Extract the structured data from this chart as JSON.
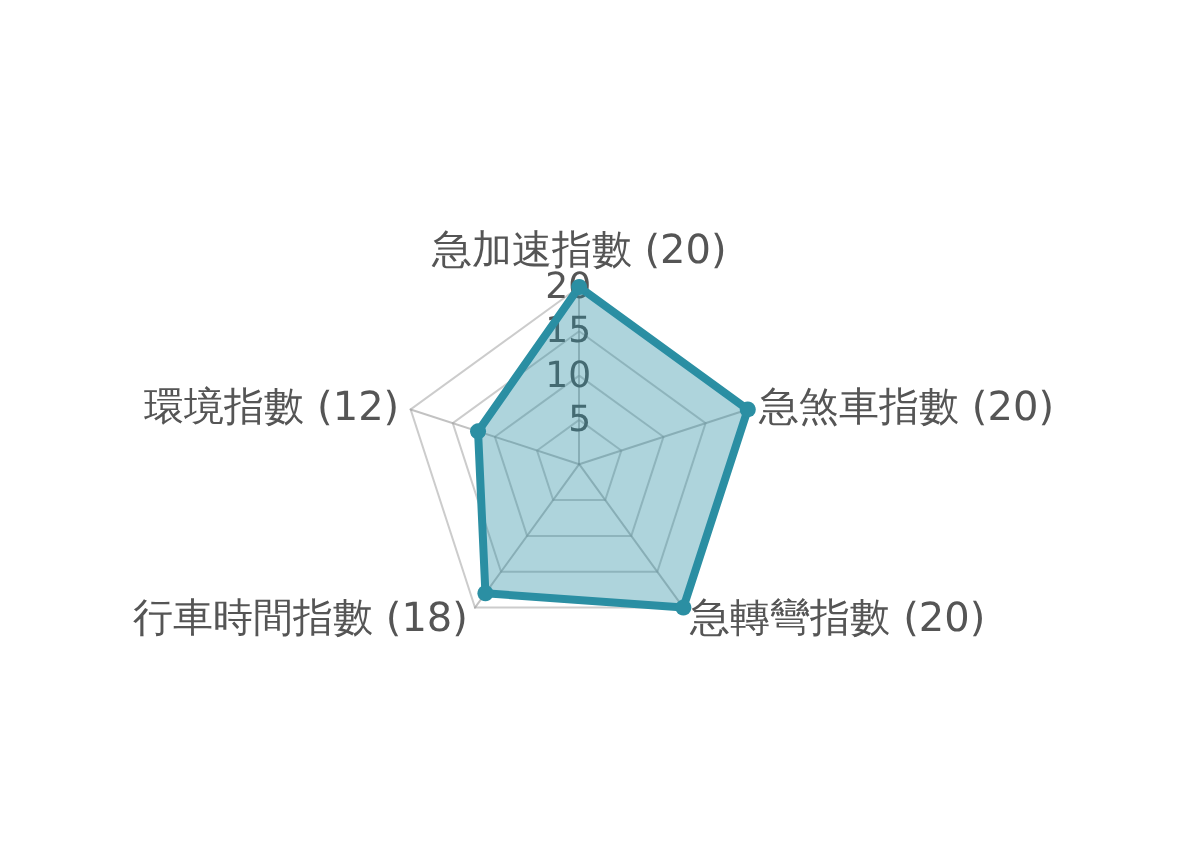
{
  "chart_data": {
    "type": "radar",
    "categories": [
      "急加速指數 (20)",
      "急煞車指數 (20)",
      "急轉彎指數 (20)",
      "行車時間指數 (18)",
      "環境指數 (12)"
    ],
    "series": [
      {
        "color": "#2b8fa3",
        "values": [
          20,
          20,
          20,
          18,
          12
        ]
      }
    ],
    "ylim": [
      0,
      20
    ],
    "yticks": [
      5,
      10,
      15,
      20
    ],
    "marker": "circle",
    "grid": true
  }
}
